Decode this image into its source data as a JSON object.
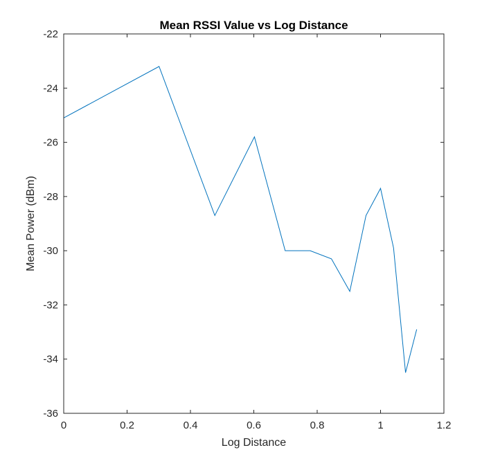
{
  "chart_data": {
    "type": "line",
    "title": "Mean RSSI Value vs Log Distance",
    "xlabel": "Log Distance",
    "ylabel": "Mean Power (dBm)",
    "xlim": [
      0,
      1.2
    ],
    "ylim": [
      -36,
      -22
    ],
    "xticks": [
      "0",
      "0.2",
      "0.4",
      "0.6",
      "0.8",
      "1",
      "1.2"
    ],
    "yticks": [
      "-22",
      "-24",
      "-26",
      "-28",
      "-30",
      "-32",
      "-34",
      "-36"
    ],
    "grid": false,
    "series": [
      {
        "color": "#0072bd",
        "x": [
          0,
          0.301,
          0.477,
          0.602,
          0.699,
          0.778,
          0.845,
          0.903,
          0.954,
          1.0,
          1.041,
          1.079,
          1.114
        ],
        "y": [
          -25.1,
          -23.2,
          -28.7,
          -25.8,
          -30.0,
          -30.0,
          -30.3,
          -31.5,
          -28.7,
          -27.7,
          -29.9,
          -34.5,
          -32.9
        ]
      }
    ]
  }
}
